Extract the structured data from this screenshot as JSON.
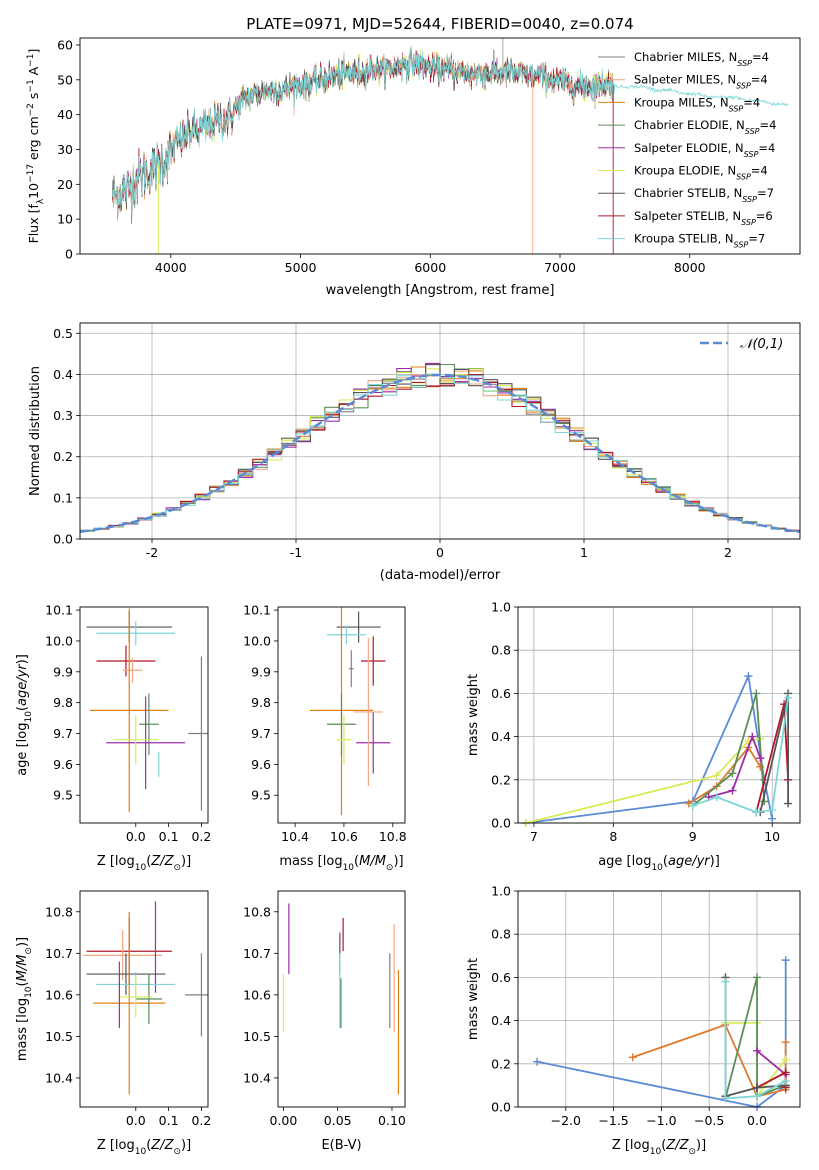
{
  "colors": {
    "grid": "#b0b0b0",
    "series": [
      "#808080",
      "#f4a582",
      "#e08214",
      "#5a8f5a",
      "#9e2ea8",
      "#d9ea5a",
      "#555555",
      "#b2182b",
      "#7fd6d6"
    ],
    "normal": "#5b8bd6",
    "ext_blue": "#5b8bd6",
    "ext_orange": "#e07b2d"
  },
  "chart_data": [
    {
      "id": "spectrum",
      "type": "line",
      "title": "PLATE=0971, MJD=52644, FIBERID=0040, z=0.074",
      "xlabel": "wavelength [Angstrom, rest frame]",
      "ylabel": "Flux [f$_\\lambda$10$^{-17}$ erg cm$^{-2}$ s$^{-1}$ A$^{-1}$]",
      "ylabel_parts": [
        "Flux [f",
        "λ",
        "10",
        "−17",
        " erg cm",
        "−2",
        " s",
        "−1",
        " A",
        "−1",
        "]"
      ],
      "xlim": [
        3300,
        8850
      ],
      "ylim": [
        0,
        62
      ],
      "xticks": [
        4000,
        5000,
        6000,
        7000,
        8000
      ],
      "yticks": [
        0,
        10,
        20,
        30,
        40,
        50,
        60
      ],
      "continuum": [
        [
          3550,
          16
        ],
        [
          3650,
          18
        ],
        [
          3750,
          22
        ],
        [
          3850,
          24
        ],
        [
          3950,
          27
        ],
        [
          4050,
          32
        ],
        [
          4150,
          35
        ],
        [
          4250,
          36
        ],
        [
          4350,
          38
        ],
        [
          4450,
          39
        ],
        [
          4550,
          44
        ],
        [
          4650,
          46
        ],
        [
          4750,
          47
        ],
        [
          4850,
          47
        ],
        [
          4950,
          48
        ],
        [
          5050,
          49
        ],
        [
          5150,
          50
        ],
        [
          5250,
          51
        ],
        [
          5350,
          52
        ],
        [
          5450,
          52
        ],
        [
          5550,
          53
        ],
        [
          5650,
          53
        ],
        [
          5750,
          54
        ],
        [
          5850,
          55
        ],
        [
          5950,
          54
        ],
        [
          6050,
          53
        ],
        [
          6150,
          53
        ],
        [
          6250,
          52
        ],
        [
          6350,
          52
        ],
        [
          6450,
          52
        ],
        [
          6550,
          52
        ],
        [
          6650,
          52
        ],
        [
          6750,
          51
        ],
        [
          6850,
          51
        ],
        [
          6950,
          50
        ],
        [
          7050,
          49
        ],
        [
          7150,
          48
        ],
        [
          7250,
          48
        ],
        [
          7350,
          49
        ],
        [
          7450,
          48
        ],
        [
          7550,
          48
        ],
        [
          7650,
          48
        ],
        [
          7750,
          47
        ],
        [
          7850,
          47
        ],
        [
          7950,
          46
        ],
        [
          8050,
          46
        ],
        [
          8150,
          45
        ],
        [
          8250,
          45
        ],
        [
          8350,
          45
        ],
        [
          8450,
          44
        ],
        [
          8550,
          44
        ],
        [
          8650,
          43
        ],
        [
          8750,
          43
        ]
      ],
      "legend_position": "upper right",
      "legend": [
        {
          "label": "Chabrier MILES, N",
          "sub": "SSP",
          "value": "=4"
        },
        {
          "label": "Salpeter MILES, N",
          "sub": "SSP",
          "value": "=4"
        },
        {
          "label": "Kroupa MILES, N",
          "sub": "SSP",
          "value": "=4"
        },
        {
          "label": "Chabrier ELODIE, N",
          "sub": "SSP",
          "value": "=4"
        },
        {
          "label": "Salpeter ELODIE, N",
          "sub": "SSP",
          "value": "=4"
        },
        {
          "label": "Kroupa ELODIE, N",
          "sub": "SSP",
          "value": "=4"
        },
        {
          "label": "Chabrier STELIB, N",
          "sub": "SSP",
          "value": "=7"
        },
        {
          "label": "Salpeter STELIB, N",
          "sub": "SSP",
          "value": "=6"
        },
        {
          "label": "Kroupa STELIB, N",
          "sub": "SSP",
          "value": "=7"
        }
      ]
    },
    {
      "id": "residuals",
      "type": "line",
      "xlabel": "(data-model)/error",
      "ylabel": "Normed distribution",
      "xlim": [
        -2.5,
        2.5
      ],
      "ylim": [
        0,
        0.525
      ],
      "xticks": [
        -2,
        -1,
        0,
        1,
        2
      ],
      "yticks": [
        0.0,
        0.1,
        0.2,
        0.3,
        0.4,
        0.5
      ],
      "grid": true,
      "legend_position": "upper right",
      "legend": "𝒩(0,1)",
      "normal": {
        "mean": 0,
        "sigma": 1
      }
    },
    {
      "id": "age_vs_Z",
      "type": "scatter",
      "xlabel": "Z [log10(Z/Z⊙)]",
      "ylabel": "age  [log10(age/yr)]",
      "xlim": [
        -0.17,
        0.22
      ],
      "ylim": [
        9.41,
        10.11
      ],
      "xticks": [
        0.0,
        0.1,
        0.2
      ],
      "yticks": [
        9.5,
        9.6,
        9.7,
        9.8,
        9.9,
        10.0,
        10.1
      ],
      "points": [
        {
          "x": -0.02,
          "y": 10.045,
          "xerr": 0.13,
          "yerr": 0.05,
          "color": 6
        },
        {
          "x": 0.0,
          "y": 10.025,
          "xerr": 0.12,
          "yerr": 0.04,
          "color": 8
        },
        {
          "x": -0.03,
          "y": 9.935,
          "xerr": 0.09,
          "yerr": 0.05,
          "color": 7
        },
        {
          "x": -0.01,
          "y": 9.905,
          "xerr": 0.03,
          "yerr": 0.04,
          "color": 1
        },
        {
          "x": 0.2,
          "y": 9.7,
          "xerr": 0.04,
          "yerr": 0.25,
          "color": 0
        },
        {
          "x": -0.02,
          "y": 9.775,
          "xerr": 0.12,
          "yerr": 0.33,
          "color": 2
        },
        {
          "x": 0.04,
          "y": 9.73,
          "xerr": 0.03,
          "yerr": 0.1,
          "color": 3
        },
        {
          "x": 0.03,
          "y": 9.67,
          "xerr": 0.12,
          "yerr": 0.15,
          "color": 4
        },
        {
          "x": 0.0,
          "y": 9.68,
          "xerr": 0.07,
          "yerr": 0.08,
          "color": 5
        },
        {
          "x": 0.07,
          "y": 9.6,
          "xerr": 0.0,
          "yerr": 0.04,
          "color": 8
        }
      ]
    },
    {
      "id": "age_vs_mass",
      "type": "scatter",
      "xlabel": "mass [log10(M/M⊙)]",
      "xlim": [
        10.33,
        10.85
      ],
      "ylim": [
        9.41,
        10.11
      ],
      "xticks": [
        10.4,
        10.6,
        10.8
      ],
      "yticks": [
        9.5,
        9.6,
        9.7,
        9.8,
        9.9,
        10.0,
        10.1
      ],
      "points": [
        {
          "x": 10.66,
          "y": 10.045,
          "xerr": 0.09,
          "yerr": 0.05,
          "color": 6
        },
        {
          "x": 10.61,
          "y": 10.02,
          "xerr": 0.08,
          "yerr": 0.03,
          "color": 8
        },
        {
          "x": 10.72,
          "y": 9.935,
          "xerr": 0.05,
          "yerr": 0.08,
          "color": 7
        },
        {
          "x": 10.63,
          "y": 9.91,
          "xerr": 0.01,
          "yerr": 0.06,
          "color": 0
        },
        {
          "x": 10.59,
          "y": 9.775,
          "xerr": 0.13,
          "yerr": 0.34,
          "color": 2
        },
        {
          "x": 10.59,
          "y": 9.73,
          "xerr": 0.06,
          "yerr": 0.1,
          "color": 3
        },
        {
          "x": 10.72,
          "y": 9.67,
          "xerr": 0.07,
          "yerr": 0.1,
          "color": 4
        },
        {
          "x": 10.6,
          "y": 9.68,
          "xerr": 0.03,
          "yerr": 0.08,
          "color": 5
        },
        {
          "x": 10.7,
          "y": 9.77,
          "xerr": 0.06,
          "yerr": 0.24,
          "color": 1
        }
      ]
    },
    {
      "id": "weight_vs_age",
      "type": "line",
      "xlabel": "age  [log10(age/yr)]",
      "ylabel": "mass weight",
      "xlim": [
        6.8,
        10.35
      ],
      "ylim": [
        0,
        1.0
      ],
      "xticks": [
        7,
        8,
        9,
        10
      ],
      "yticks": [
        0.0,
        0.2,
        0.4,
        0.6,
        0.8,
        1.0
      ],
      "series": [
        {
          "color": "ext_blue",
          "points": [
            [
              6.9,
              0.0
            ],
            [
              9.0,
              0.1
            ],
            [
              9.7,
              0.68
            ],
            [
              9.9,
              0.2
            ],
            [
              10.0,
              0.02
            ]
          ]
        },
        {
          "color": 5,
          "points": [
            [
              6.9,
              0.0
            ],
            [
              9.3,
              0.22
            ],
            [
              9.7,
              0.38
            ],
            [
              9.85,
              0.39
            ]
          ]
        },
        {
          "color": "ext_orange",
          "points": [
            [
              8.95,
              0.09
            ],
            [
              9.3,
              0.17
            ],
            [
              9.7,
              0.35
            ],
            [
              9.85,
              0.26
            ]
          ]
        },
        {
          "color": 3,
          "points": [
            [
              9.0,
              0.08
            ],
            [
              9.5,
              0.23
            ],
            [
              9.8,
              0.6
            ],
            [
              9.9,
              0.1
            ]
          ]
        },
        {
          "color": 4,
          "points": [
            [
              9.2,
              0.12
            ],
            [
              9.5,
              0.15
            ],
            [
              9.75,
              0.4
            ],
            [
              9.85,
              0.3
            ]
          ]
        },
        {
          "color": 7,
          "points": [
            [
              9.8,
              0.05
            ],
            [
              10.15,
              0.55
            ],
            [
              10.2,
              0.2
            ]
          ]
        },
        {
          "color": 6,
          "points": [
            [
              9.85,
              0.05
            ],
            [
              10.2,
              0.6
            ],
            [
              10.2,
              0.09
            ]
          ]
        },
        {
          "color": 8,
          "points": [
            [
              9.0,
              0.08
            ],
            [
              9.3,
              0.12
            ],
            [
              9.8,
              0.05
            ],
            [
              10.0,
              0.06
            ],
            [
              10.2,
              0.58
            ]
          ]
        }
      ]
    },
    {
      "id": "mass_vs_Z",
      "type": "scatter",
      "xlabel": "Z [log10(Z/Z⊙)]",
      "ylabel": "mass [log10(M/M⊙)]",
      "xlim": [
        -0.17,
        0.22
      ],
      "ylim": [
        10.33,
        10.85
      ],
      "xticks": [
        0.0,
        0.1,
        0.2
      ],
      "yticks": [
        10.4,
        10.5,
        10.6,
        10.7,
        10.8
      ],
      "points": [
        {
          "x": -0.02,
          "y": 10.705,
          "xerr": 0.13,
          "yerr": 0.08,
          "color": 7
        },
        {
          "x": -0.04,
          "y": 10.695,
          "xerr": 0.12,
          "yerr": 0.06,
          "color": 1
        },
        {
          "x": 0.06,
          "y": 10.715,
          "xerr": 0.0,
          "yerr": 0.11,
          "color": 4
        },
        {
          "x": -0.03,
          "y": 10.65,
          "xerr": 0.12,
          "yerr": 0.05,
          "color": 6
        },
        {
          "x": 0.0,
          "y": 10.625,
          "xerr": 0.12,
          "yerr": 0.03,
          "color": 8
        },
        {
          "x": 0.2,
          "y": 10.6,
          "xerr": 0.05,
          "yerr": 0.1,
          "color": 0
        },
        {
          "x": -0.02,
          "y": 10.58,
          "xerr": 0.11,
          "yerr": 0.22,
          "color": 2
        },
        {
          "x": 0.04,
          "y": 10.59,
          "xerr": 0.04,
          "yerr": 0.06,
          "color": 3
        },
        {
          "x": 0.0,
          "y": 10.595,
          "xerr": 0.05,
          "yerr": 0.05,
          "color": 5
        },
        {
          "x": -0.05,
          "y": 10.6,
          "xerr": 0.0,
          "yerr": 0.08,
          "color": 4
        }
      ]
    },
    {
      "id": "mass_vs_EBV",
      "type": "scatter",
      "xlabel": "E(B-V)",
      "xlim": [
        -0.005,
        0.112
      ],
      "ylim": [
        10.33,
        10.85
      ],
      "xticks": [
        0.0,
        0.05,
        0.1
      ],
      "yticks": [
        10.4,
        10.5,
        10.6,
        10.7,
        10.8
      ],
      "points": [
        {
          "x": 0.005,
          "y": 10.735,
          "yerr": 0.085,
          "color": 4
        },
        {
          "x": 0.0,
          "y": 10.58,
          "yerr": 0.07,
          "color": 5
        },
        {
          "x": 0.055,
          "y": 10.745,
          "yerr": 0.04,
          "color": 7
        },
        {
          "x": 0.052,
          "y": 10.7,
          "yerr": 0.05,
          "color": 6
        },
        {
          "x": 0.052,
          "y": 10.61,
          "yerr": 0.09,
          "color": 8
        },
        {
          "x": 0.053,
          "y": 10.58,
          "yerr": 0.06,
          "color": 3
        },
        {
          "x": 0.098,
          "y": 10.61,
          "yerr": 0.09,
          "color": 0
        },
        {
          "x": 0.102,
          "y": 10.64,
          "yerr": 0.13,
          "color": 1
        },
        {
          "x": 0.106,
          "y": 10.51,
          "yerr": 0.15,
          "color": 2
        }
      ]
    },
    {
      "id": "weight_vs_Z",
      "type": "line",
      "xlabel": "Z [log10(Z/Z⊙)]",
      "ylabel": "mass weight",
      "xlim": [
        -2.5,
        0.45
      ],
      "ylim": [
        0,
        1.0
      ],
      "xticks": [
        -2.0,
        -1.5,
        -1.0,
        -0.5,
        0.0
      ],
      "yticks": [
        0.0,
        0.2,
        0.4,
        0.6,
        0.8,
        1.0
      ],
      "series": [
        {
          "color": "ext_blue",
          "points": [
            [
              -2.3,
              0.21
            ],
            [
              0.0,
              0.0
            ],
            [
              0.3,
              0.1
            ],
            [
              0.3,
              0.68
            ]
          ]
        },
        {
          "color": "ext_orange",
          "points": [
            [
              -1.3,
              0.23
            ],
            [
              -0.33,
              0.38
            ],
            [
              0.0,
              0.05
            ],
            [
              0.3,
              0.08
            ],
            [
              0.3,
              0.3
            ]
          ]
        },
        {
          "color": 5,
          "points": [
            [
              -0.33,
              0.39
            ],
            [
              0.0,
              0.39
            ],
            [
              0.0,
              0.05
            ],
            [
              0.3,
              0.22
            ]
          ]
        },
        {
          "color": 3,
          "points": [
            [
              -0.33,
              0.04
            ],
            [
              0.0,
              0.6
            ],
            [
              0.0,
              0.05
            ],
            [
              0.3,
              0.1
            ]
          ]
        },
        {
          "color": 4,
          "points": [
            [
              0.0,
              0.26
            ],
            [
              0.3,
              0.15
            ],
            [
              0.3,
              0.1
            ]
          ]
        },
        {
          "color": 7,
          "points": [
            [
              0.0,
              0.09
            ],
            [
              0.3,
              0.16
            ],
            [
              0.3,
              0.09
            ]
          ]
        },
        {
          "color": 6,
          "points": [
            [
              -0.33,
              0.6
            ],
            [
              -0.33,
              0.05
            ],
            [
              0.0,
              0.09
            ],
            [
              0.3,
              0.1
            ]
          ]
        },
        {
          "color": 8,
          "points": [
            [
              -0.33,
              0.58
            ],
            [
              -0.33,
              0.04
            ],
            [
              0.0,
              0.05
            ],
            [
              0.3,
              0.12
            ]
          ]
        }
      ]
    }
  ]
}
